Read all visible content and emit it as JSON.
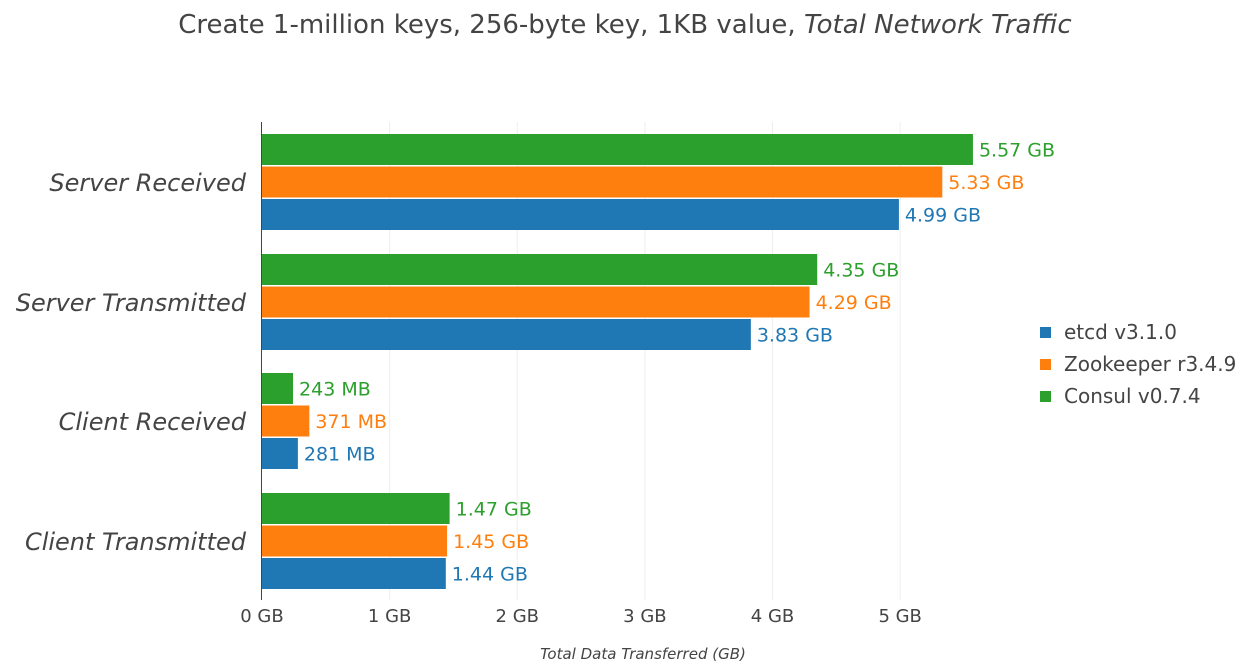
{
  "title": {
    "main": "Create 1-million keys, 256-byte key, 1KB value, ",
    "italic": "Total Network Traffic"
  },
  "chart_data": {
    "type": "bar",
    "orientation": "horizontal",
    "categories": [
      "Server Received",
      "Server Transmitted",
      "Client Received",
      "Client Transmitted"
    ],
    "series": [
      {
        "name": "etcd v3.1.0",
        "color": "#1f77b4",
        "values": [
          4.99,
          3.83,
          0.281,
          1.44
        ],
        "labels": [
          "4.99 GB",
          "3.83 GB",
          "281 MB",
          "1.44 GB"
        ]
      },
      {
        "name": "Zookeeper r3.4.9",
        "color": "#ff7f0e",
        "values": [
          5.33,
          4.29,
          0.371,
          1.45
        ],
        "labels": [
          "5.33 GB",
          "4.29 GB",
          "371 MB",
          "1.45 GB"
        ]
      },
      {
        "name": "Consul v0.7.4",
        "color": "#2ca02c",
        "values": [
          5.57,
          4.35,
          0.243,
          1.47
        ],
        "labels": [
          "5.57 GB",
          "4.35 GB",
          "243 MB",
          "1.47 GB"
        ]
      }
    ],
    "xticks": [
      0,
      1,
      2,
      3,
      4,
      5
    ],
    "xtick_labels": [
      "0 GB",
      "1 GB",
      "2 GB",
      "3 GB",
      "4 GB",
      "5 GB"
    ],
    "xlabel": "Total Data Transferred (GB)",
    "ylabel": "",
    "xlim": [
      0,
      5.97
    ],
    "grid": true,
    "legend_position": "right"
  }
}
